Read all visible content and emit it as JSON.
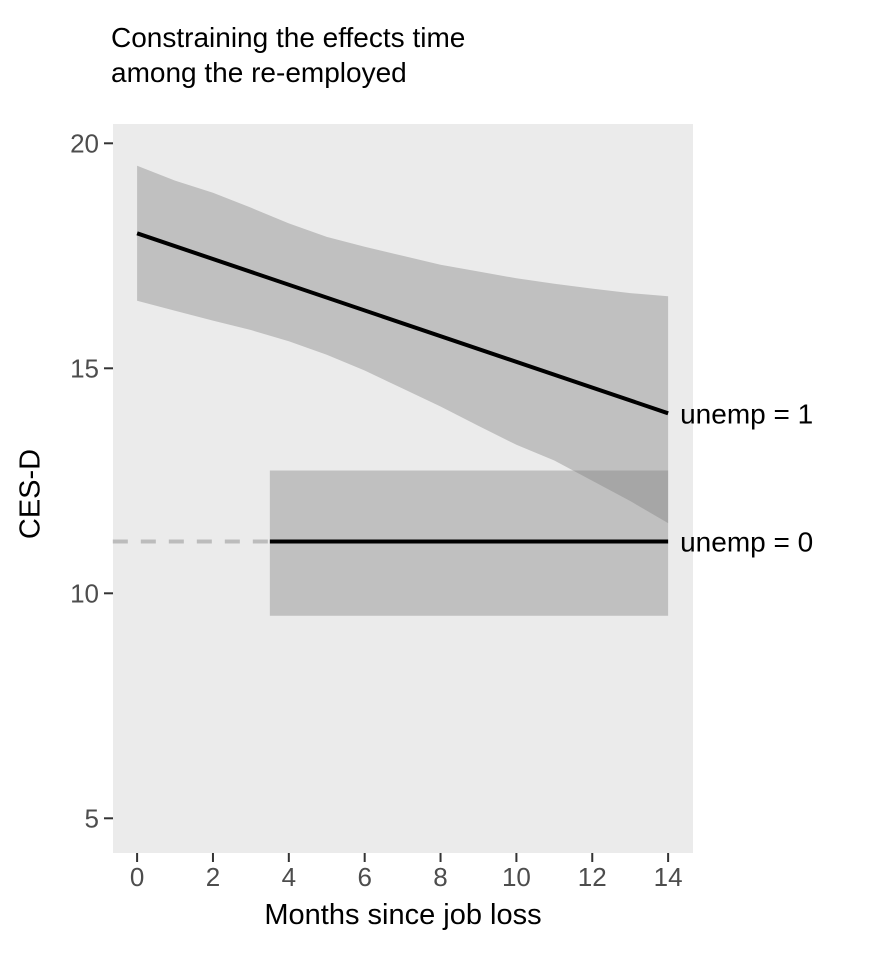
{
  "chart_data": {
    "type": "line",
    "title_lines": [
      "Constraining the effects time",
      "among the re-employed"
    ],
    "title": "Constraining the effects time among the re-employed",
    "xlabel": "Months since job loss",
    "ylabel": "CES-D",
    "x_ticks": [
      0,
      2,
      4,
      6,
      8,
      10,
      12,
      14
    ],
    "y_ticks": [
      20,
      15,
      10,
      5
    ],
    "xlim": [
      -0.64,
      14.66
    ],
    "ylim": [
      4.23,
      20.43
    ],
    "grid": false,
    "legend": "labels at right end of lines",
    "series": [
      {
        "name": "unemp1",
        "label": "unemp = 1",
        "line_x": [
          0,
          14
        ],
        "line_y": [
          18.0,
          14.0
        ],
        "band_x": [
          0,
          1,
          2,
          3,
          4,
          5,
          6,
          7,
          8,
          9,
          10,
          11,
          12,
          13,
          14
        ],
        "band_upper": [
          19.5,
          19.17,
          18.9,
          18.57,
          18.22,
          17.92,
          17.7,
          17.5,
          17.3,
          17.15,
          17.0,
          16.88,
          16.77,
          16.67,
          16.6
        ],
        "band_lower": [
          16.5,
          16.28,
          16.06,
          15.85,
          15.6,
          15.3,
          14.95,
          14.55,
          14.15,
          13.72,
          13.3,
          12.95,
          12.5,
          12.05,
          11.56
        ]
      },
      {
        "name": "unemp0",
        "label": "unemp = 0",
        "line_x": [
          3.5,
          14
        ],
        "line_y": [
          11.15,
          11.15
        ],
        "band_x": [
          3.5,
          14
        ],
        "band_upper": [
          12.73,
          12.73
        ],
        "band_lower": [
          9.5,
          9.5
        ],
        "lead_dash": {
          "x": [
            -0.64,
            3.5
          ],
          "y": 11.15
        }
      }
    ],
    "colors": {
      "panel_bg": "#EBEBEB",
      "band": "#808080",
      "band_opacity": "0.4",
      "line": "#000000",
      "dash": "#BCBCBC",
      "tick_label": "#4D4D4D",
      "tick_mark": "#333333",
      "text": "#000000"
    }
  }
}
